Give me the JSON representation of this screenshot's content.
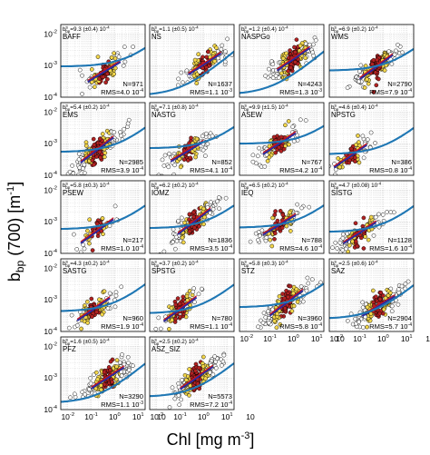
{
  "figure": {
    "ylabel_main": "b",
    "ylabel_sub": "bp",
    "ylabel_rest": " (700) [m",
    "ylabel_exp": "-1",
    "ylabel_close": "]",
    "xlabel_main": "Chl [mg m",
    "xlabel_exp": "-3",
    "xlabel_close": "]",
    "panel_stat_prefix": "b",
    "panel_stat_sup": "s",
    "panel_stat_sub": "bp",
    "n_prefix": "N=",
    "rms_prefix": "RMS="
  },
  "colors": {
    "fit_curve": "#1f77b4",
    "median_line": "#2a2aa0",
    "percentile_line": "#c8141e",
    "points_low": "#ffffff",
    "points_mid": "#f2d64b",
    "points_high": "#b22222",
    "grid": "#c8c8c8"
  },
  "chart_data": {
    "type": "scatter",
    "xscale": "log",
    "yscale": "log",
    "xlim": [
      0.005,
      20
    ],
    "ylim": [
      0.0001,
      0.02
    ],
    "x_ticks": [
      "10",
      "10",
      "10",
      "10",
      "10"
    ],
    "x_tick_exps": [
      "-2",
      "-1",
      "0",
      "1",
      ""
    ],
    "y_ticks": [
      "10",
      "10",
      "10"
    ],
    "y_tick_exps": [
      "-2",
      "-3",
      "-4"
    ],
    "grid": true,
    "panels": [
      {
        "name": "BAFF",
        "bs": "9.3 (±0.4) 10",
        "bs_exp": "-4",
        "N": "971",
        "rms": "4.0 10",
        "rms_exp": "-4",
        "center": [
          -0.45,
          -3.2
        ]
      },
      {
        "name": "NS",
        "bs": "1.1 (±0.5) 10",
        "bs_exp": "-4",
        "N": "1637",
        "rms": "1.1 10",
        "rms_exp": "-3",
        "center": [
          0.05,
          -2.95
        ]
      },
      {
        "name": "NASPGo",
        "bs": "1.2 (±0.4) 10",
        "bs_exp": "-4",
        "N": "4243",
        "rms": "1.3 10",
        "rms_exp": "-3",
        "center": [
          0.0,
          -2.8
        ]
      },
      {
        "name": "WMS",
        "bs": "6.9 (±0.2) 10",
        "bs_exp": "-4",
        "N": "2790",
        "rms": "7.9 10",
        "rms_exp": "-4",
        "center": [
          -0.3,
          -3.05
        ]
      },
      {
        "name": "EMS",
        "bs": "5.4 (±0.2) 10",
        "bs_exp": "-4",
        "N": "2985",
        "rms": "3.9 10",
        "rms_exp": "-4",
        "center": [
          -0.75,
          -3.2
        ]
      },
      {
        "name": "NASTG",
        "bs": "7.1 (±0.8) 10",
        "bs_exp": "-4",
        "N": "852",
        "rms": "4.1 10",
        "rms_exp": "-4",
        "center": [
          -0.7,
          -3.25
        ]
      },
      {
        "name": "ASEW",
        "bs": "9.9 (±1.5) 10",
        "bs_exp": "-4",
        "N": "767",
        "rms": "4.2 10",
        "rms_exp": "-4",
        "center": [
          -0.6,
          -3.0
        ]
      },
      {
        "name": "NPSTG",
        "bs": "4.6 (±0.4) 10",
        "bs_exp": "-4",
        "N": "386",
        "rms": "0.8 10",
        "rms_exp": "-4",
        "center": [
          -1.4,
          -3.4
        ]
      },
      {
        "name": "PSEW",
        "bs": "5.8 (±0.3) 10",
        "bs_exp": "-4",
        "N": "217",
        "rms": "1.0 10",
        "rms_exp": "-4",
        "center": [
          -0.75,
          -3.3
        ]
      },
      {
        "name": "IOMZ",
        "bs": "6.2 (±0.2) 10",
        "bs_exp": "-4",
        "N": "1836",
        "rms": "3.5 10",
        "rms_exp": "-4",
        "center": [
          -0.4,
          -3.0
        ]
      },
      {
        "name": "IEQ",
        "bs": "6.5 (±0.2) 10",
        "bs_exp": "-4",
        "N": "788",
        "rms": "4.6 10",
        "rms_exp": "-4",
        "center": [
          -0.6,
          -3.1
        ]
      },
      {
        "name": "SISTG",
        "bs": "4.7 (±0.08) 10",
        "bs_exp": "-4",
        "N": "1128",
        "rms": "1.6 10",
        "rms_exp": "-4",
        "center": [
          -1.0,
          -3.35
        ]
      },
      {
        "name": "SASTG",
        "bs": "4.3 (±0.2) 10",
        "bs_exp": "-4",
        "N": "960",
        "rms": "1.9 10",
        "rms_exp": "-4",
        "center": [
          -0.9,
          -3.3
        ]
      },
      {
        "name": "SPSTG",
        "bs": "3.7 (±0.2) 10",
        "bs_exp": "-4",
        "N": "780",
        "rms": "1.1 10",
        "rms_exp": "-4",
        "center": [
          -1.0,
          -3.3
        ]
      },
      {
        "name": "STZ",
        "bs": "5.8 (±0.3) 10",
        "bs_exp": "-4",
        "N": "3960",
        "rms": "5.8 10",
        "rms_exp": "-4",
        "center": [
          -0.3,
          -3.1
        ]
      },
      {
        "name": "SAZ",
        "bs": "2.5 (±0.6) 10",
        "bs_exp": "-4",
        "N": "2904",
        "rms": "5.7 10",
        "rms_exp": "-4",
        "center": [
          -0.2,
          -3.2
        ]
      },
      {
        "name": "PFZ",
        "bs": "1.6 (±0.5) 10",
        "bs_exp": "-4",
        "N": "3290",
        "rms": "1.1 10",
        "rms_exp": "-3",
        "center": [
          -0.3,
          -3.0
        ]
      },
      {
        "name": "ASZ_SIZ",
        "bs": "2.5 (±0.2) 10",
        "bs_exp": "-4",
        "N": "5573",
        "rms": "7.2 10",
        "rms_exp": "-4",
        "center": [
          -0.3,
          -3.0
        ]
      }
    ]
  }
}
